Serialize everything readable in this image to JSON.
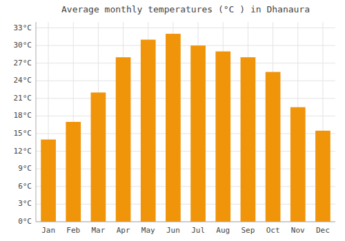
{
  "chart_data": {
    "type": "bar",
    "title": "Average monthly temperatures (°C ) in Dhanaura",
    "categories": [
      "Jan",
      "Feb",
      "Mar",
      "Apr",
      "May",
      "Jun",
      "Jul",
      "Aug",
      "Sep",
      "Oct",
      "Nov",
      "Dec"
    ],
    "values": [
      14,
      17,
      22,
      28,
      31,
      32,
      30,
      29,
      28,
      25.5,
      19.5,
      15.5
    ],
    "color": "#F0940A",
    "ylim": [
      0,
      34
    ],
    "yticks": [
      {
        "value": 0,
        "label": "0°C"
      },
      {
        "value": 3,
        "label": "3°C"
      },
      {
        "value": 6,
        "label": "6°C"
      },
      {
        "value": 9,
        "label": "9°C"
      },
      {
        "value": 12,
        "label": "12°C"
      },
      {
        "value": 15,
        "label": "15°C"
      },
      {
        "value": 18,
        "label": "18°C"
      },
      {
        "value": 21,
        "label": "21°C"
      },
      {
        "value": 24,
        "label": "24°C"
      },
      {
        "value": 27,
        "label": "27°C"
      },
      {
        "value": 30,
        "label": "30°C"
      },
      {
        "value": 33,
        "label": "33°C"
      }
    ],
    "grid": true
  }
}
